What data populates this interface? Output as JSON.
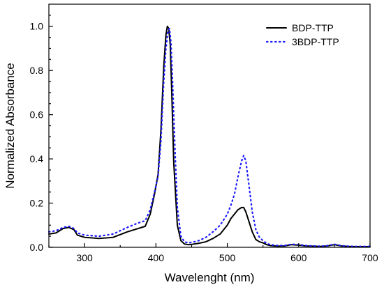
{
  "chart_data": {
    "type": "line",
    "title": "",
    "xlabel": "Wavelenght (nm)",
    "ylabel": "Normalized Absorbance",
    "xlim": [
      250,
      700
    ],
    "ylim": [
      0,
      1.1
    ],
    "x_ticks": [
      300,
      400,
      500,
      600,
      700
    ],
    "y_ticks": [
      0.0,
      0.2,
      0.4,
      0.6,
      0.8,
      1.0
    ],
    "x_tick_labels": [
      "300",
      "400",
      "500",
      "600",
      "700"
    ],
    "y_tick_labels": [
      "0.0",
      "0.2",
      "0.4",
      "0.6",
      "0.8",
      "1.0"
    ],
    "grid": false,
    "legend_position": "top-right",
    "series": [
      {
        "name": "BDP-TTP",
        "color": "#000000",
        "style": "solid",
        "x": [
          250,
          260,
          270,
          278,
          285,
          290,
          300,
          320,
          340,
          360,
          375,
          385,
          392,
          398,
          403,
          407,
          411,
          414,
          416,
          418,
          420,
          422,
          425,
          430,
          435,
          440,
          445,
          450,
          460,
          470,
          480,
          490,
          500,
          505,
          510,
          515,
          520,
          523,
          526,
          530,
          535,
          540,
          545,
          550,
          555,
          560,
          570,
          580,
          590,
          600,
          610,
          620,
          630,
          640,
          650,
          660,
          670,
          680,
          700
        ],
        "y": [
          0.06,
          0.065,
          0.085,
          0.09,
          0.08,
          0.055,
          0.045,
          0.04,
          0.045,
          0.07,
          0.085,
          0.095,
          0.15,
          0.24,
          0.33,
          0.53,
          0.82,
          0.96,
          1.0,
          0.99,
          0.92,
          0.72,
          0.38,
          0.1,
          0.03,
          0.015,
          0.012,
          0.013,
          0.018,
          0.025,
          0.04,
          0.06,
          0.1,
          0.13,
          0.15,
          0.17,
          0.18,
          0.18,
          0.16,
          0.12,
          0.07,
          0.035,
          0.025,
          0.02,
          0.012,
          0.008,
          0.005,
          0.006,
          0.012,
          0.01,
          0.006,
          0.005,
          0.004,
          0.006,
          0.012,
          0.006,
          0.004,
          0.003,
          0.003
        ]
      },
      {
        "name": "3BDP-TTP",
        "color": "#1a1aff",
        "style": "dotted",
        "x": [
          250,
          260,
          270,
          278,
          285,
          290,
          300,
          320,
          340,
          360,
          375,
          385,
          392,
          398,
          403,
          407,
          411,
          414,
          417,
          419,
          421,
          423,
          426,
          430,
          435,
          440,
          445,
          450,
          460,
          470,
          480,
          490,
          500,
          505,
          510,
          515,
          520,
          523,
          526,
          530,
          535,
          540,
          545,
          550,
          555,
          560,
          570,
          580,
          590,
          600,
          610,
          620,
          630,
          640,
          650,
          660,
          670,
          680,
          700
        ],
        "y": [
          0.07,
          0.075,
          0.09,
          0.095,
          0.085,
          0.065,
          0.055,
          0.05,
          0.06,
          0.09,
          0.11,
          0.12,
          0.17,
          0.25,
          0.32,
          0.48,
          0.75,
          0.9,
          0.98,
          0.99,
          0.93,
          0.78,
          0.5,
          0.18,
          0.05,
          0.025,
          0.02,
          0.022,
          0.03,
          0.045,
          0.07,
          0.1,
          0.15,
          0.19,
          0.24,
          0.32,
          0.39,
          0.415,
          0.39,
          0.29,
          0.16,
          0.08,
          0.045,
          0.03,
          0.018,
          0.012,
          0.008,
          0.008,
          0.014,
          0.012,
          0.008,
          0.006,
          0.005,
          0.007,
          0.014,
          0.007,
          0.005,
          0.004,
          0.004
        ]
      }
    ]
  }
}
